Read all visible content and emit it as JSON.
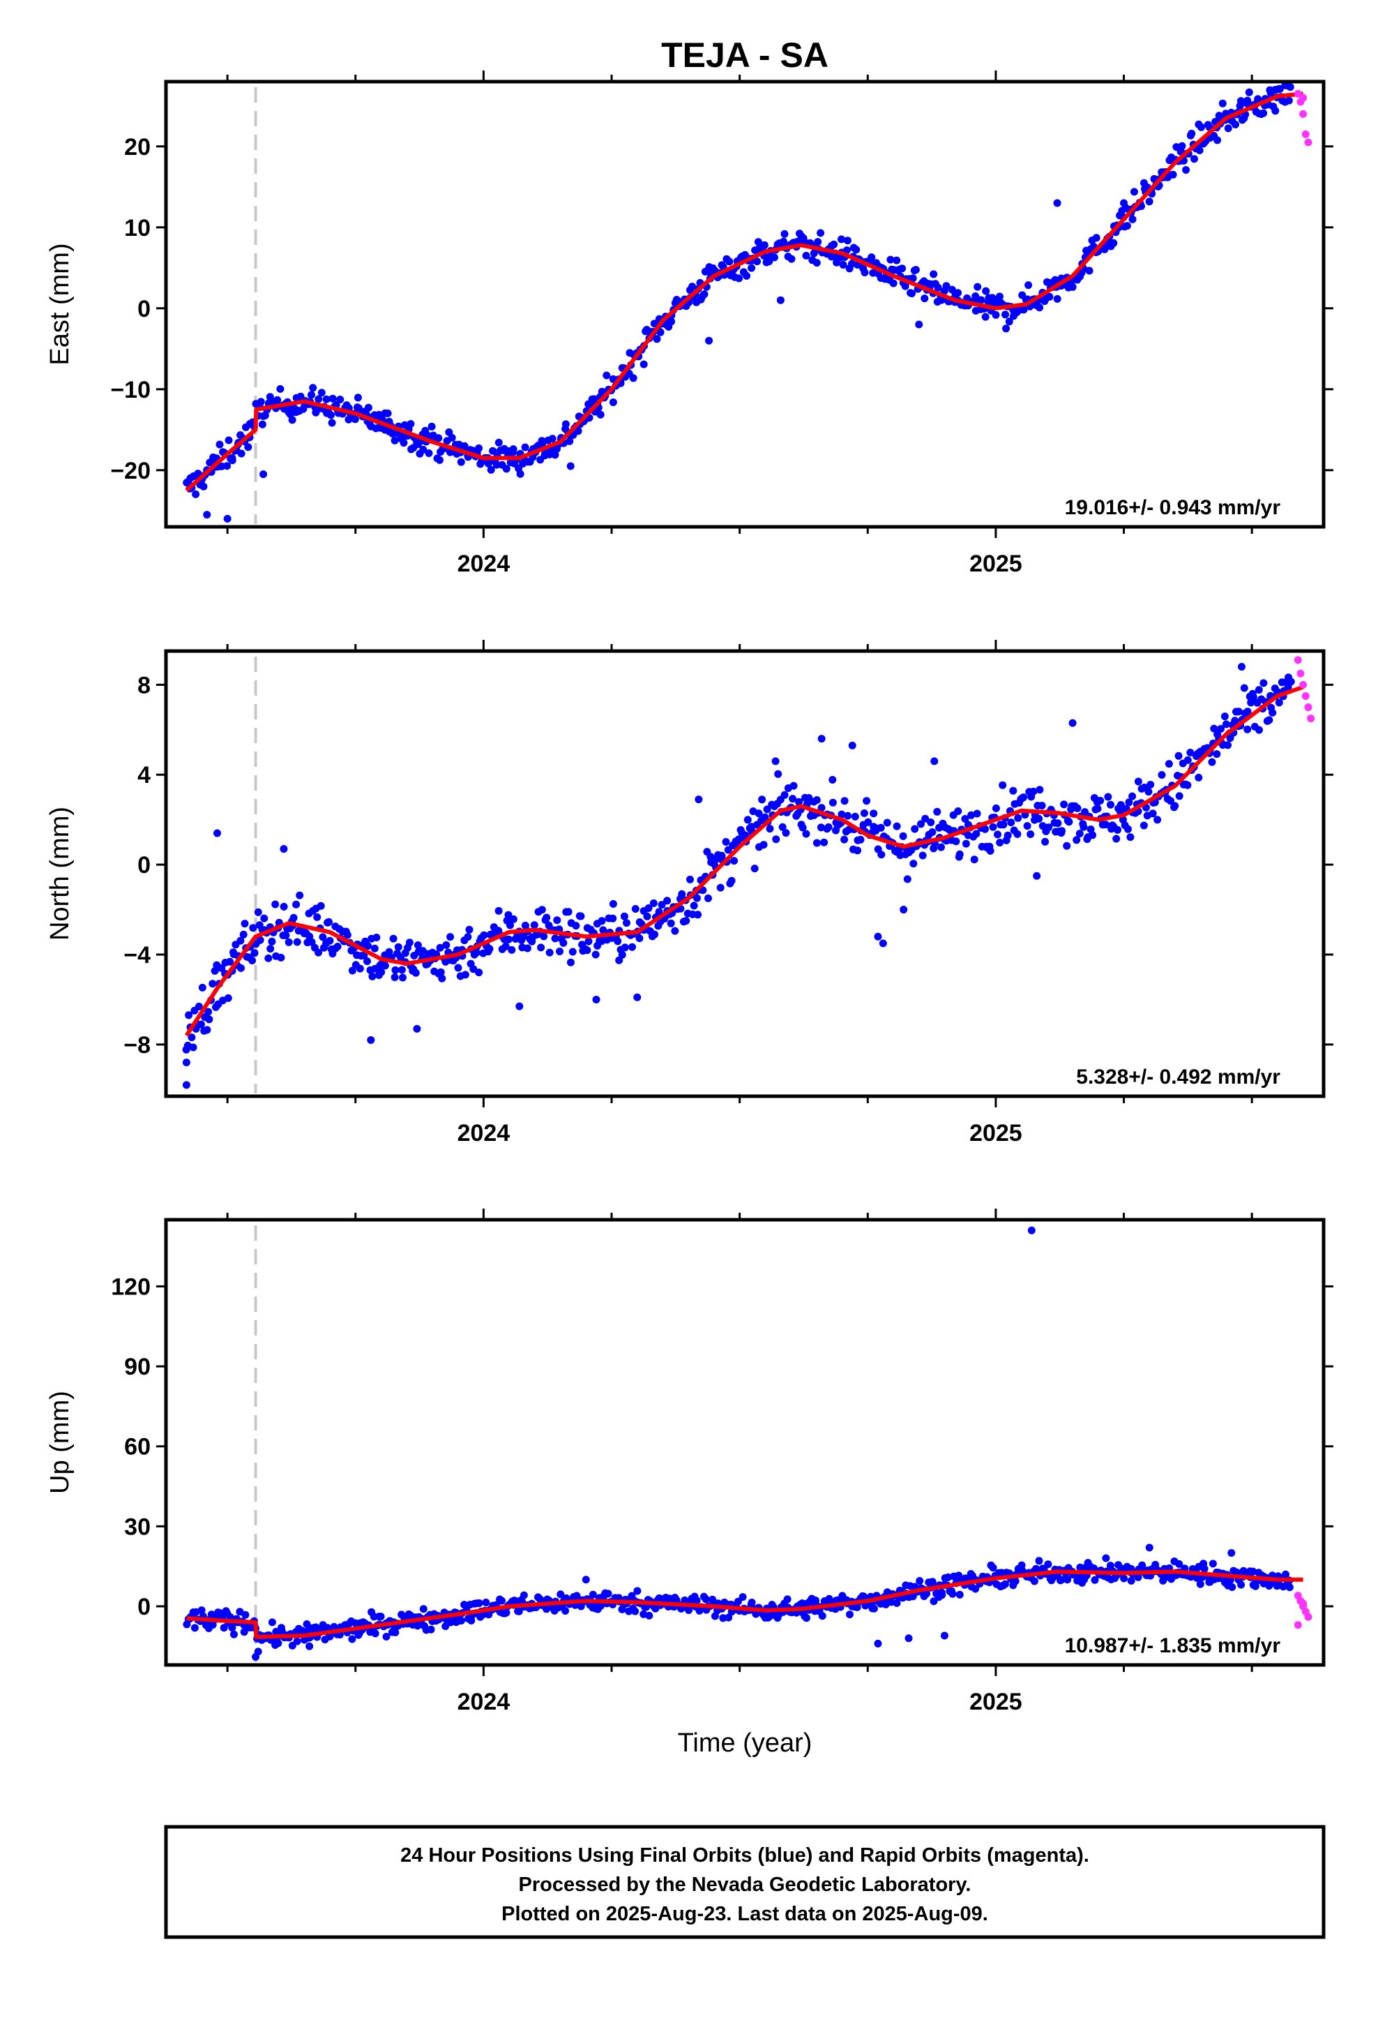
{
  "title": "TEJA - SA",
  "xlabel": "Time (year)",
  "footer": [
    "24 Hour Positions Using Final Orbits (blue) and Rapid Orbits (magenta).",
    "Processed by the Nevada Geodetic Laboratory.",
    "Plotted on 2025-Aug-23. Last data on 2025-Aug-09."
  ],
  "colors": {
    "final": "#0000ff",
    "rapid": "#ff33ff",
    "model": "#ff0000",
    "break_line": "#c8c8c8"
  },
  "chart_data": [
    {
      "type": "scatter",
      "ylabel": "East (mm)",
      "rate_label": "19.016+/- 0.943 mm/yr",
      "xlim": [
        2023.38,
        2025.64
      ],
      "ylim": [
        -27,
        28
      ],
      "yticks": [
        -20,
        -10,
        0,
        10,
        20
      ],
      "xticks": [
        2024,
        2025
      ],
      "break_x": 2023.555,
      "model": [
        [
          2023.42,
          -22.5
        ],
        [
          2023.5,
          -18
        ],
        [
          2023.555,
          -15
        ],
        [
          2023.556,
          -12.5
        ],
        [
          2023.65,
          -11.5
        ],
        [
          2023.75,
          -13
        ],
        [
          2023.9,
          -16.5
        ],
        [
          2024.0,
          -18.5
        ],
        [
          2024.07,
          -18.5
        ],
        [
          2024.15,
          -16.5
        ],
        [
          2024.25,
          -10
        ],
        [
          2024.35,
          -1.5
        ],
        [
          2024.45,
          4
        ],
        [
          2024.55,
          7
        ],
        [
          2024.62,
          7.8
        ],
        [
          2024.7,
          6.8
        ],
        [
          2024.8,
          4
        ],
        [
          2024.92,
          1
        ],
        [
          2025.0,
          0
        ],
        [
          2025.06,
          0.5
        ],
        [
          2025.15,
          4
        ],
        [
          2025.25,
          11
        ],
        [
          2025.35,
          18
        ],
        [
          2025.45,
          23.5
        ],
        [
          2025.55,
          26.2
        ],
        [
          2025.6,
          26.5
        ]
      ],
      "anchors": [
        [
          2023.42,
          -22.5
        ],
        [
          2023.5,
          -18
        ],
        [
          2023.555,
          -15
        ],
        [
          2023.556,
          -12.5
        ],
        [
          2023.65,
          -11.5
        ],
        [
          2023.75,
          -13
        ],
        [
          2023.9,
          -16.5
        ],
        [
          2024.0,
          -18.5
        ],
        [
          2024.07,
          -18.5
        ],
        [
          2024.15,
          -16.5
        ],
        [
          2024.25,
          -10
        ],
        [
          2024.35,
          -1.5
        ],
        [
          2024.45,
          4
        ],
        [
          2024.55,
          7
        ],
        [
          2024.62,
          7.8
        ],
        [
          2024.7,
          6.8
        ],
        [
          2024.8,
          4
        ],
        [
          2024.92,
          1
        ],
        [
          2025.0,
          0
        ],
        [
          2025.06,
          0.5
        ],
        [
          2025.15,
          4
        ],
        [
          2025.25,
          11
        ],
        [
          2025.35,
          18
        ],
        [
          2025.45,
          23.5
        ],
        [
          2025.55,
          26.2
        ],
        [
          2025.6,
          26.5
        ]
      ],
      "x_range": [
        2023.42,
        2025.575
      ],
      "spread": 1.5,
      "outliers": [
        [
          2023.46,
          -25.5
        ],
        [
          2023.5,
          -26
        ],
        [
          2023.57,
          -20.5
        ],
        [
          2024.17,
          -19.5
        ],
        [
          2024.44,
          -4
        ],
        [
          2024.58,
          1
        ],
        [
          2024.85,
          -2
        ],
        [
          2025.02,
          -2.5
        ],
        [
          2025.12,
          13
        ],
        [
          2025.25,
          13
        ]
      ],
      "rapid": [
        [
          2025.59,
          26.5
        ],
        [
          2025.595,
          25.5
        ],
        [
          2025.6,
          24
        ],
        [
          2025.605,
          21.5
        ],
        [
          2025.61,
          20.5
        ],
        [
          2025.6,
          26
        ]
      ]
    },
    {
      "type": "scatter",
      "ylabel": "North (mm)",
      "rate_label": "5.328+/- 0.492 mm/yr",
      "xlim": [
        2023.38,
        2025.64
      ],
      "ylim": [
        -10.3,
        9.5
      ],
      "yticks": [
        -8,
        -4,
        0,
        4,
        8
      ],
      "xticks": [
        2024,
        2025
      ],
      "break_x": 2023.555,
      "model": [
        [
          2023.42,
          -7.6
        ],
        [
          2023.48,
          -5.5
        ],
        [
          2023.555,
          -3.2
        ],
        [
          2023.62,
          -2.6
        ],
        [
          2023.7,
          -3
        ],
        [
          2023.8,
          -4.2
        ],
        [
          2023.85,
          -4.4
        ],
        [
          2023.95,
          -4
        ],
        [
          2024.05,
          -3
        ],
        [
          2024.1,
          -2.9
        ],
        [
          2024.2,
          -3.2
        ],
        [
          2024.3,
          -3
        ],
        [
          2024.4,
          -1.5
        ],
        [
          2024.5,
          0.8
        ],
        [
          2024.58,
          2.4
        ],
        [
          2024.62,
          2.6
        ],
        [
          2024.7,
          2
        ],
        [
          2024.75,
          1.3
        ],
        [
          2024.82,
          0.8
        ],
        [
          2024.9,
          1.2
        ],
        [
          2025.0,
          2
        ],
        [
          2025.05,
          2.4
        ],
        [
          2025.12,
          2.3
        ],
        [
          2025.2,
          2
        ],
        [
          2025.25,
          2.2
        ],
        [
          2025.35,
          3.5
        ],
        [
          2025.45,
          5.8
        ],
        [
          2025.55,
          7.5
        ],
        [
          2025.6,
          7.9
        ]
      ],
      "anchors": [
        [
          2023.42,
          -7.6
        ],
        [
          2023.48,
          -5.5
        ],
        [
          2023.555,
          -3.2
        ],
        [
          2023.62,
          -2.6
        ],
        [
          2023.7,
          -3
        ],
        [
          2023.8,
          -4.2
        ],
        [
          2023.85,
          -4.4
        ],
        [
          2023.95,
          -4
        ],
        [
          2024.05,
          -3
        ],
        [
          2024.1,
          -2.9
        ],
        [
          2024.2,
          -3.2
        ],
        [
          2024.3,
          -3
        ],
        [
          2024.4,
          -1.5
        ],
        [
          2024.5,
          0.8
        ],
        [
          2024.58,
          2.4
        ],
        [
          2024.62,
          2.6
        ],
        [
          2024.7,
          2
        ],
        [
          2024.75,
          1.3
        ],
        [
          2024.82,
          0.8
        ],
        [
          2024.9,
          1.2
        ],
        [
          2025.0,
          2
        ],
        [
          2025.05,
          2.4
        ],
        [
          2025.12,
          2.3
        ],
        [
          2025.2,
          2
        ],
        [
          2025.25,
          2.2
        ],
        [
          2025.35,
          3.5
        ],
        [
          2025.45,
          5.8
        ],
        [
          2025.55,
          7.5
        ],
        [
          2025.6,
          7.9
        ]
      ],
      "x_range": [
        2023.42,
        2025.575
      ],
      "spread": 1.0,
      "outliers": [
        [
          2023.42,
          -9.8
        ],
        [
          2023.42,
          -8.8
        ],
        [
          2023.48,
          1.4
        ],
        [
          2023.61,
          0.7
        ],
        [
          2023.78,
          -7.8
        ],
        [
          2023.87,
          -7.3
        ],
        [
          2024.07,
          -6.3
        ],
        [
          2024.22,
          -6
        ],
        [
          2024.3,
          -5.9
        ],
        [
          2024.42,
          2.9
        ],
        [
          2024.57,
          4.6
        ],
        [
          2024.66,
          5.6
        ],
        [
          2024.72,
          5.3
        ],
        [
          2024.77,
          -3.2
        ],
        [
          2024.78,
          -3.5
        ],
        [
          2024.82,
          -2
        ],
        [
          2024.88,
          4.6
        ],
        [
          2025.15,
          6.3
        ],
        [
          2025.08,
          -0.5
        ],
        [
          2025.48,
          8.8
        ]
      ],
      "rapid": [
        [
          2025.59,
          9.1
        ],
        [
          2025.595,
          8.5
        ],
        [
          2025.6,
          8
        ],
        [
          2025.605,
          7.5
        ],
        [
          2025.61,
          7
        ],
        [
          2025.615,
          6.5
        ]
      ]
    },
    {
      "type": "scatter",
      "ylabel": "Up (mm)",
      "rate_label": "10.987+/- 1.835 mm/yr",
      "xlim": [
        2023.38,
        2025.64
      ],
      "ylim": [
        -22,
        145
      ],
      "yticks": [
        0,
        30,
        60,
        90,
        120
      ],
      "xticks": [
        2024,
        2025
      ],
      "break_x": 2023.555,
      "model": [
        [
          2023.42,
          -4.5
        ],
        [
          2023.5,
          -5.5
        ],
        [
          2023.555,
          -6
        ],
        [
          2023.556,
          -11.5
        ],
        [
          2023.65,
          -11
        ],
        [
          2023.8,
          -7
        ],
        [
          2023.95,
          -3
        ],
        [
          2024.05,
          0
        ],
        [
          2024.2,
          2
        ],
        [
          2024.3,
          1.5
        ],
        [
          2024.45,
          0
        ],
        [
          2024.55,
          -1.5
        ],
        [
          2024.62,
          -1
        ],
        [
          2024.75,
          2
        ],
        [
          2024.85,
          6
        ],
        [
          2025.0,
          10.5
        ],
        [
          2025.12,
          13
        ],
        [
          2025.25,
          12.5
        ],
        [
          2025.35,
          13
        ],
        [
          2025.45,
          11.5
        ],
        [
          2025.55,
          10
        ],
        [
          2025.6,
          10
        ]
      ],
      "anchors": [
        [
          2023.42,
          -4.5
        ],
        [
          2023.5,
          -5.5
        ],
        [
          2023.555,
          -6
        ],
        [
          2023.556,
          -11.5
        ],
        [
          2023.65,
          -11
        ],
        [
          2023.8,
          -7
        ],
        [
          2023.95,
          -3
        ],
        [
          2024.05,
          0
        ],
        [
          2024.2,
          2
        ],
        [
          2024.3,
          1.5
        ],
        [
          2024.45,
          0
        ],
        [
          2024.55,
          -1.5
        ],
        [
          2024.62,
          -1
        ],
        [
          2024.75,
          2
        ],
        [
          2024.85,
          6
        ],
        [
          2025.0,
          10.5
        ],
        [
          2025.12,
          13
        ],
        [
          2025.25,
          12.5
        ],
        [
          2025.35,
          13
        ],
        [
          2025.45,
          11.5
        ],
        [
          2025.55,
          10
        ],
        [
          2025.6,
          10
        ]
      ],
      "x_range": [
        2023.42,
        2025.575
      ],
      "spread": 3.2,
      "outliers": [
        [
          2025.07,
          141
        ],
        [
          2023.555,
          -19
        ],
        [
          2023.56,
          -17
        ],
        [
          2024.77,
          -14
        ],
        [
          2024.83,
          -12
        ],
        [
          2023.66,
          -15
        ],
        [
          2025.3,
          22
        ],
        [
          2025.46,
          20
        ],
        [
          2024.2,
          10
        ],
        [
          2024.9,
          -11
        ]
      ],
      "rapid": [
        [
          2025.59,
          4
        ],
        [
          2025.595,
          2
        ],
        [
          2025.6,
          0
        ],
        [
          2025.605,
          -2
        ],
        [
          2025.61,
          -4
        ],
        [
          2025.59,
          -7
        ],
        [
          2025.6,
          1
        ]
      ]
    }
  ]
}
